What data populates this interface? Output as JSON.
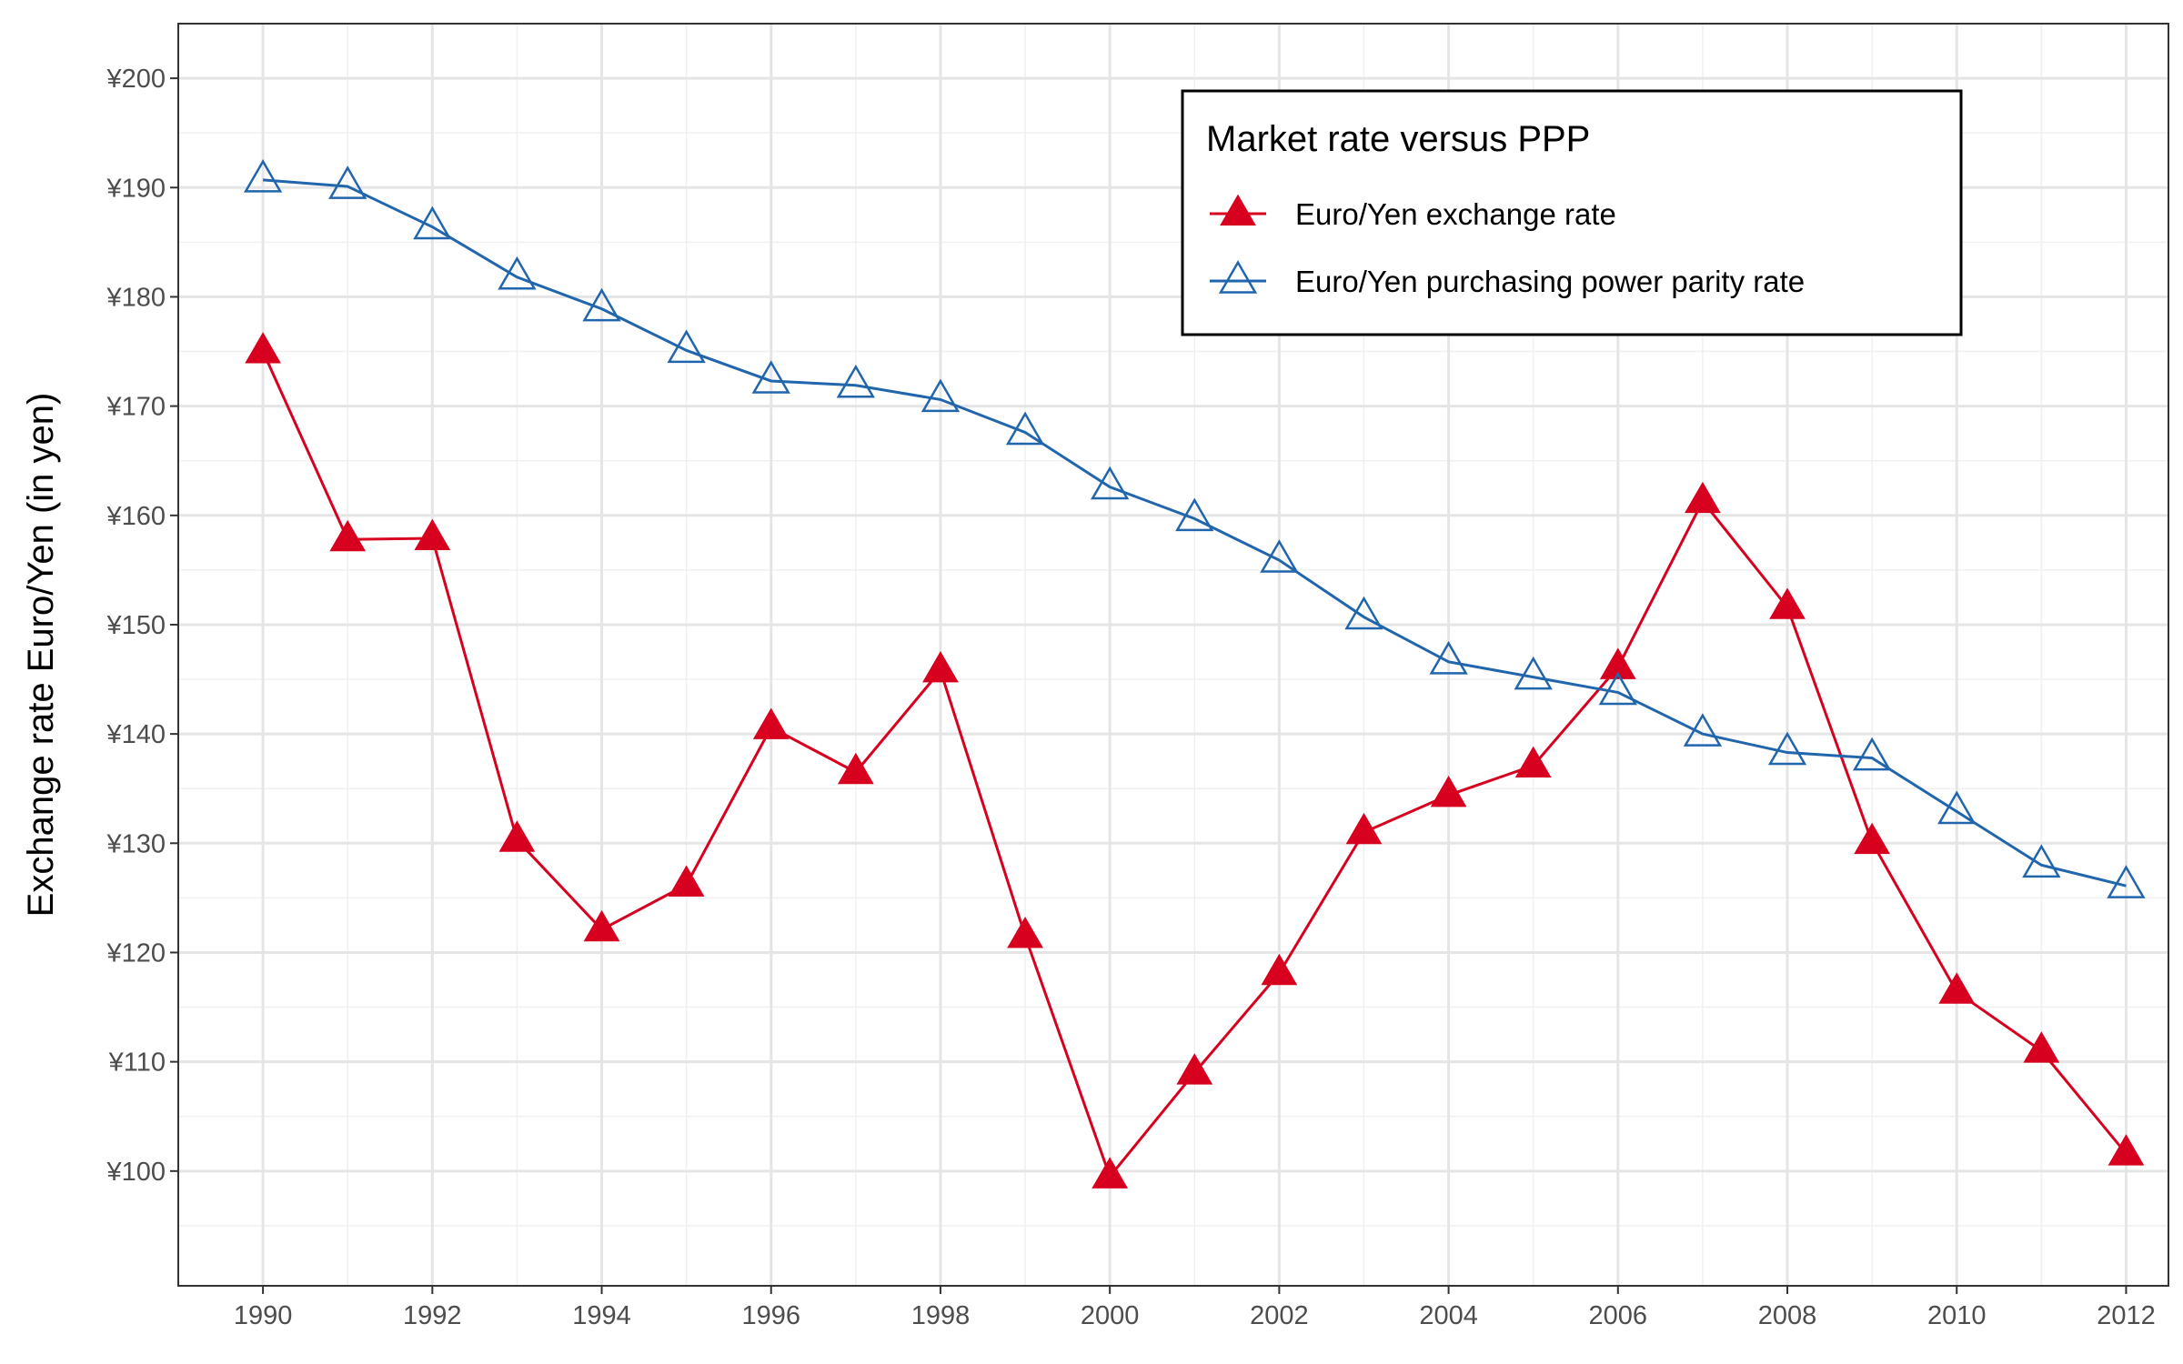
{
  "chart_data": {
    "type": "line",
    "title": "",
    "xlabel": "",
    "ylabel": "Exchange rate Euro/Yen (in yen)",
    "x": [
      1990,
      1991,
      1992,
      1993,
      1994,
      1995,
      1996,
      1997,
      1998,
      1999,
      2000,
      2001,
      2002,
      2003,
      2004,
      2005,
      2006,
      2007,
      2008,
      2009,
      2010,
      2011,
      2012
    ],
    "xlim": [
      1989,
      2012.5
    ],
    "ylim": [
      89.5,
      205
    ],
    "x_ticks": [
      "1990",
      "1992",
      "1994",
      "1996",
      "1998",
      "2000",
      "2002",
      "2004",
      "2006",
      "2008",
      "2010",
      "2012"
    ],
    "y_ticks": [
      "¥100",
      "¥110",
      "¥120",
      "¥130",
      "¥140",
      "¥150",
      "¥160",
      "¥170",
      "¥180",
      "¥190",
      "¥200"
    ],
    "grid": true,
    "legend": {
      "title": "Market rate versus PPP",
      "position": "top-right"
    },
    "series": [
      {
        "name": "Euro/Yen exchange rate",
        "color": "#d7001f",
        "marker": "filled-triangle",
        "values": [
          175.0,
          157.8,
          157.9,
          130.3,
          122.1,
          126.2,
          140.6,
          136.5,
          145.8,
          121.5,
          99.5,
          109.0,
          118.1,
          131.0,
          134.4,
          137.1,
          146.1,
          161.3,
          151.6,
          130.1,
          116.4,
          111.0,
          101.6
        ]
      },
      {
        "name": "Euro/Yen purchasing power parity rate",
        "color": "#2166ac",
        "marker": "open-triangle",
        "values": [
          190.7,
          190.1,
          186.4,
          181.8,
          178.9,
          175.1,
          172.3,
          171.9,
          170.6,
          167.6,
          162.6,
          159.7,
          155.9,
          150.7,
          146.6,
          145.2,
          143.8,
          140.0,
          138.3,
          137.8,
          132.9,
          128.0,
          126.1
        ]
      }
    ]
  }
}
